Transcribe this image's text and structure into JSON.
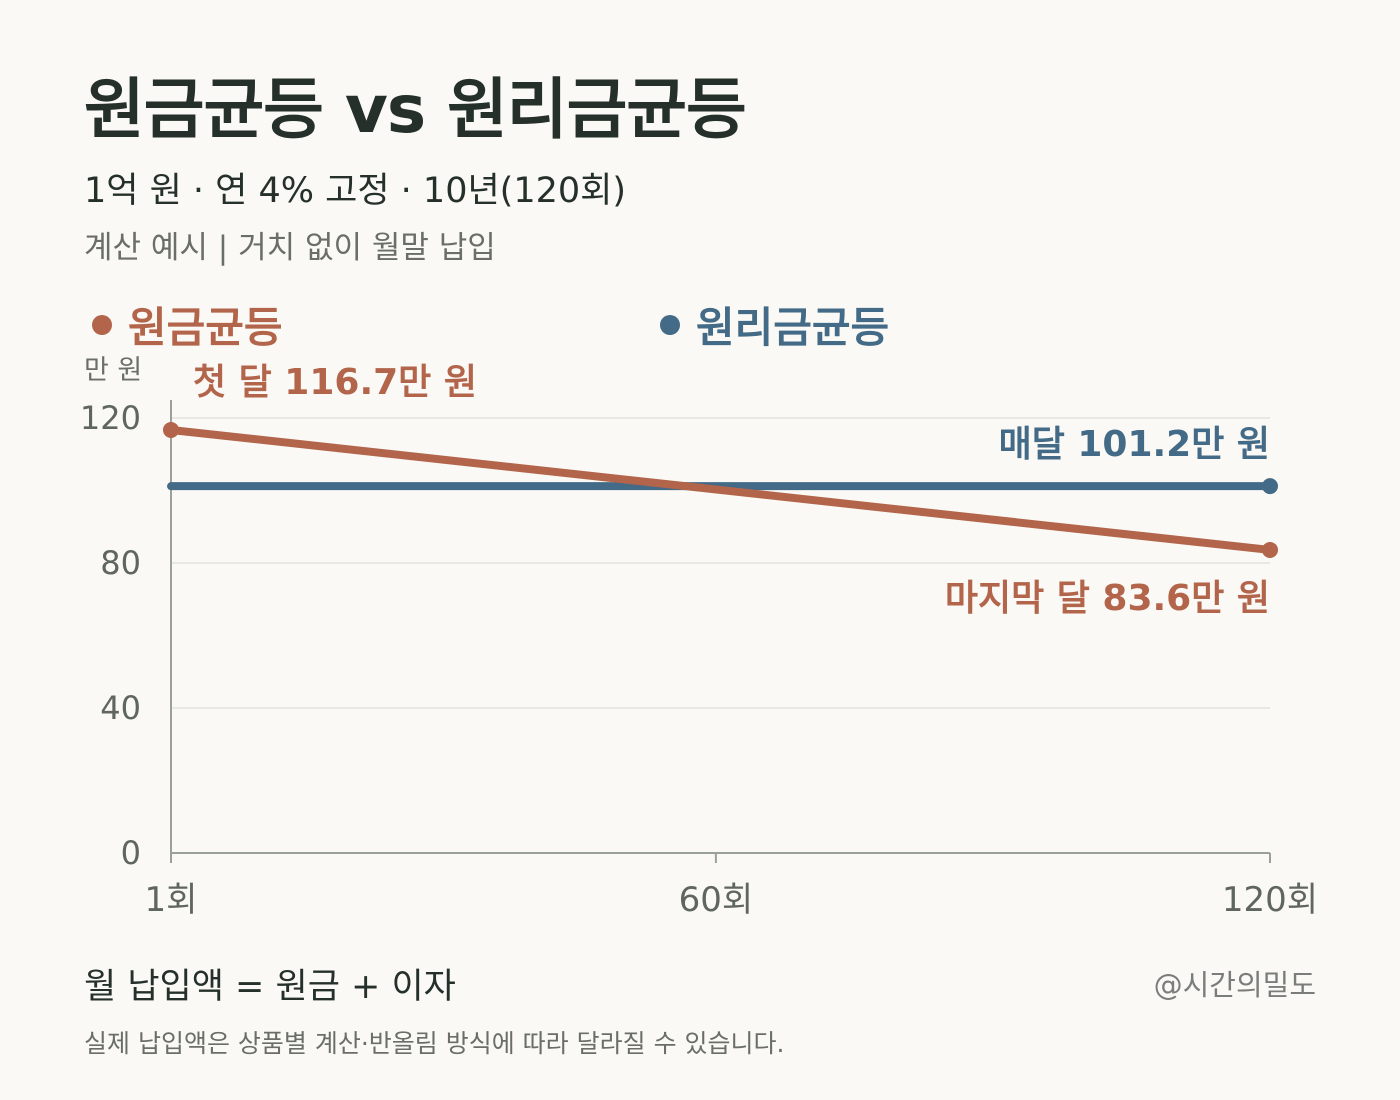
{
  "header": {
    "title": "원금균등 vs 원리금균등",
    "subtitle": "1억 원 · 연 4% 고정 · 10년(120회)",
    "note": "계산 예시  |  거치 없이 월말 납입"
  },
  "colors": {
    "principal": "#b2654a",
    "annuity": "#436a86",
    "axis": "#9aa09a",
    "grid": "#e2e2de"
  },
  "legend": {
    "principal_label": "원금균등",
    "annuity_label": "원리금균등"
  },
  "chart_data": {
    "type": "line",
    "ylabel": "만 원",
    "ylim": [
      0,
      120
    ],
    "yticks": [
      0,
      40,
      80,
      120
    ],
    "xlim": [
      1,
      120
    ],
    "xticks": [
      {
        "value": 1,
        "label": "1회"
      },
      {
        "value": 60,
        "label": "60회"
      },
      {
        "value": 120,
        "label": "120회"
      }
    ],
    "grid": true,
    "series": [
      {
        "name": "원금균등",
        "x": [
          1,
          120
        ],
        "y": [
          116.7,
          83.6
        ]
      },
      {
        "name": "원리금균등",
        "x": [
          1,
          120
        ],
        "y": [
          101.2,
          101.2
        ]
      }
    ],
    "annotations": {
      "first": "첫 달 116.7만 원",
      "monthly": "매달 101.2만 원",
      "last": "마지막 달 83.6만 원"
    }
  },
  "footer": {
    "formula": "월 납입액 = 원금 + 이자",
    "credit": "@시간의밀도",
    "disclaimer": "실제 납입액은 상품별 계산·반올림 방식에 따라 달라질 수 있습니다."
  }
}
